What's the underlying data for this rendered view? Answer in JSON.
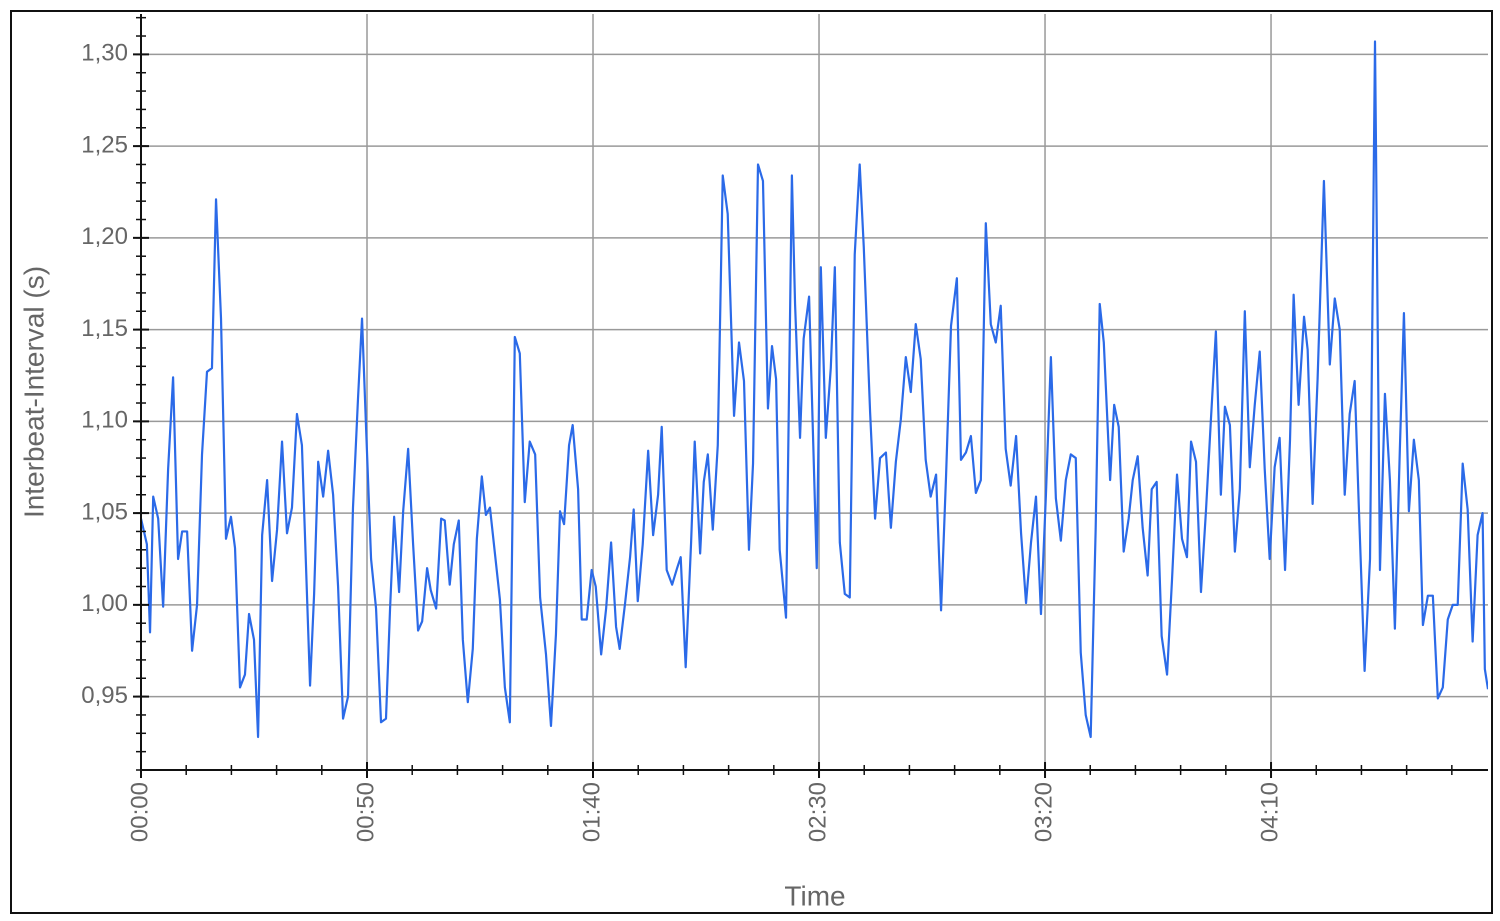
{
  "chart_data": {
    "type": "line",
    "x_label": "Time",
    "y_label": "Interbeat-Interval (s)",
    "color": "#2b6ae8",
    "grid": true,
    "xlim": [
      0,
      298
    ],
    "ylim": [
      0.91,
      1.322
    ],
    "xticks": [
      {
        "value": 0,
        "label": "00:00"
      },
      {
        "value": 50,
        "label": "00:50"
      },
      {
        "value": 100,
        "label": "01:40"
      },
      {
        "value": 150,
        "label": "02:30"
      },
      {
        "value": 200,
        "label": "03:20"
      },
      {
        "value": 250,
        "label": "04:10"
      }
    ],
    "yticks": [
      {
        "value": 0.95,
        "label": "0,95"
      },
      {
        "value": 1.0,
        "label": "1,00"
      },
      {
        "value": 1.05,
        "label": "1,05"
      },
      {
        "value": 1.1,
        "label": "1,10"
      },
      {
        "value": 1.15,
        "label": "1,15"
      },
      {
        "value": 1.2,
        "label": "1,20"
      },
      {
        "value": 1.25,
        "label": "1,25"
      },
      {
        "value": 1.3,
        "label": "1,30"
      }
    ],
    "x": [
      0,
      1.3,
      2.0,
      2.7,
      3.8,
      4.9,
      6.0,
      7.1,
      8.2,
      9.1,
      10.2,
      11.3,
      12.4,
      13.5,
      14.6,
      15.7,
      16.6,
      17.7,
      18.8,
      19.9,
      20.8,
      21.9,
      23.0,
      23.9,
      25.0,
      25.9,
      26.8,
      27.9,
      29.0,
      30.1,
      31.2,
      32.3,
      33.4,
      34.5,
      35.6,
      37.4,
      38.3,
      39.2,
      40.3,
      41.4,
      42.5,
      43.6,
      44.7,
      45.8,
      46.9,
      48.0,
      48.9,
      49.8,
      50.9,
      52.0,
      53.1,
      54.2,
      55.1,
      56.0,
      57.1,
      58.0,
      59.1,
      60.2,
      61.3,
      62.2,
      63.3,
      64.1,
      65.3,
      66.4,
      67.2,
      68.3,
      69.2,
      70.3,
      71.2,
      72.3,
      73.4,
      74.3,
      75.4,
      76.3,
      77.2,
      78.3,
      79.4,
      80.5,
      81.6,
      82.7,
      83.8,
      84.9,
      86.0,
      87.2,
      88.3,
      89.6,
      90.7,
      91.8,
      92.7,
      93.6,
      94.7,
      95.5,
      96.7,
      97.5,
      98.6,
      99.7,
      100.6,
      101.8,
      102.9,
      104.0,
      105.1,
      105.9,
      107.1,
      108.2,
      109.0,
      109.9,
      111.0,
      112.2,
      113.3,
      114.4,
      115.2,
      116.3,
      117.5,
      118.6,
      119.4,
      120.5,
      121.7,
      122.5,
      123.7,
      124.5,
      125.4,
      126.5,
      127.6,
      128.7,
      129.8,
      131.2,
      132.3,
      133.4,
      134.5,
      135.4,
      136.5,
      137.6,
      138.7,
      139.6,
      140.5,
      141.3,
      142.7,
      144.0,
      144.7,
      145.8,
      146.6,
      147.8,
      149.5,
      150.4,
      151.5,
      152.6,
      153.5,
      154.6,
      155.7,
      156.8,
      157.9,
      159.0,
      159.9,
      161.3,
      162.4,
      163.5,
      164.8,
      165.9,
      167.0,
      168.1,
      169.2,
      170.3,
      171.4,
      172.5,
      173.6,
      174.7,
      175.9,
      177.0,
      178.1,
      179.2,
      180.5,
      181.4,
      182.5,
      183.6,
      184.7,
      185.8,
      186.9,
      188.0,
      189.1,
      190.2,
      191.3,
      192.4,
      193.6,
      194.7,
      195.8,
      196.9,
      198.0,
      199.1,
      200.2,
      201.3,
      202.4,
      203.5,
      204.6,
      205.7,
      206.8,
      207.9,
      209.0,
      210.1,
      211.2,
      212.1,
      213.0,
      214.4,
      215.3,
      216.3,
      217.4,
      218.5,
      219.4,
      220.5,
      221.6,
      222.7,
      223.6,
      224.7,
      225.8,
      227.0,
      228.1,
      229.2,
      230.3,
      231.4,
      232.3,
      233.4,
      234.5,
      235.6,
      236.7,
      237.8,
      238.9,
      239.8,
      240.9,
      242.0,
      243.1,
      244.2,
      245.3,
      246.4,
      247.5,
      248.6,
      249.7,
      250.8,
      251.9,
      253.1,
      254.2,
      255.0,
      256.1,
      257.3,
      258.1,
      259.2,
      260.3,
      261.7,
      263.0,
      264.1,
      265.2,
      266.3,
      267.4,
      268.5,
      269.4,
      270.7,
      271.9,
      273.0,
      274.1,
      275.2,
      276.3,
      277.4,
      278.5,
      279.4,
      280.5,
      281.6,
      282.7,
      283.6,
      284.7,
      285.8,
      286.9,
      288.0,
      289.1,
      290.2,
      291.3,
      292.4,
      293.5,
      294.6,
      295.7,
      296.8,
      297.3,
      298.0
    ],
    "values": [
      1.047,
      1.033,
      0.985,
      1.059,
      1.047,
      0.999,
      1.074,
      1.124,
      1.025,
      1.04,
      1.04,
      0.975,
      1.0,
      1.082,
      1.127,
      1.129,
      1.221,
      1.156,
      1.036,
      1.048,
      1.031,
      0.955,
      0.962,
      0.995,
      0.981,
      0.928,
      1.038,
      1.068,
      1.013,
      1.041,
      1.089,
      1.039,
      1.053,
      1.104,
      1.087,
      0.956,
      1.006,
      1.078,
      1.059,
      1.084,
      1.06,
      1.01,
      0.938,
      0.95,
      1.053,
      1.112,
      1.156,
      1.096,
      1.025,
      0.998,
      0.936,
      0.938,
      0.998,
      1.048,
      1.007,
      1.051,
      1.085,
      1.033,
      0.986,
      0.991,
      1.02,
      1.008,
      0.998,
      1.047,
      1.046,
      1.011,
      1.033,
      1.046,
      0.981,
      0.947,
      0.976,
      1.036,
      1.07,
      1.049,
      1.053,
      1.028,
      1.003,
      0.955,
      0.936,
      1.146,
      1.137,
      1.056,
      1.089,
      1.082,
      1.004,
      0.973,
      0.934,
      0.984,
      1.051,
      1.044,
      1.087,
      1.098,
      1.063,
      0.992,
      0.992,
      1.019,
      1.01,
      0.973,
      0.998,
      1.034,
      0.988,
      0.976,
      1.001,
      1.026,
      1.052,
      1.002,
      1.033,
      1.084,
      1.038,
      1.06,
      1.097,
      1.019,
      1.011,
      1.02,
      1.026,
      0.966,
      1.034,
      1.089,
      1.028,
      1.067,
      1.082,
      1.041,
      1.087,
      1.234,
      1.213,
      1.103,
      1.143,
      1.122,
      1.03,
      1.077,
      1.24,
      1.231,
      1.107,
      1.141,
      1.123,
      1.03,
      0.993,
      1.234,
      1.164,
      1.091,
      1.145,
      1.168,
      1.02,
      1.184,
      1.091,
      1.129,
      1.184,
      1.034,
      1.006,
      1.004,
      1.191,
      1.24,
      1.195,
      1.105,
      1.047,
      1.08,
      1.083,
      1.042,
      1.078,
      1.101,
      1.135,
      1.116,
      1.153,
      1.134,
      1.079,
      1.059,
      1.071,
      0.997,
      1.07,
      1.152,
      1.178,
      1.079,
      1.083,
      1.092,
      1.061,
      1.068,
      1.208,
      1.153,
      1.143,
      1.163,
      1.085,
      1.065,
      1.092,
      1.039,
      1.001,
      1.034,
      1.059,
      0.995,
      1.06,
      1.135,
      1.058,
      1.035,
      1.068,
      1.082,
      1.08,
      0.974,
      0.94,
      0.928,
      1.041,
      1.164,
      1.143,
      1.068,
      1.109,
      1.097,
      1.029,
      1.047,
      1.068,
      1.081,
      1.042,
      1.016,
      1.063,
      1.067,
      0.983,
      0.962,
      1.014,
      1.071,
      1.036,
      1.026,
      1.089,
      1.078,
      1.007,
      1.051,
      1.101,
      1.149,
      1.06,
      1.108,
      1.098,
      1.029,
      1.063,
      1.16,
      1.075,
      1.109,
      1.138,
      1.074,
      1.025,
      1.075,
      1.091,
      1.019,
      1.09,
      1.169,
      1.109,
      1.157,
      1.139,
      1.055,
      1.123,
      1.231,
      1.131,
      1.167,
      1.15,
      1.06,
      1.104,
      1.122,
      1.055,
      0.964,
      1.025,
      1.307,
      1.019,
      1.115,
      1.068,
      0.987,
      1.085,
      1.159,
      1.051,
      1.09,
      1.068,
      0.989,
      1.005,
      1.005,
      0.949,
      0.955,
      0.992,
      1.0,
      1.0,
      1.077,
      1.052,
      0.98,
      1.038,
      1.05,
      0.965,
      0.954
    ]
  }
}
